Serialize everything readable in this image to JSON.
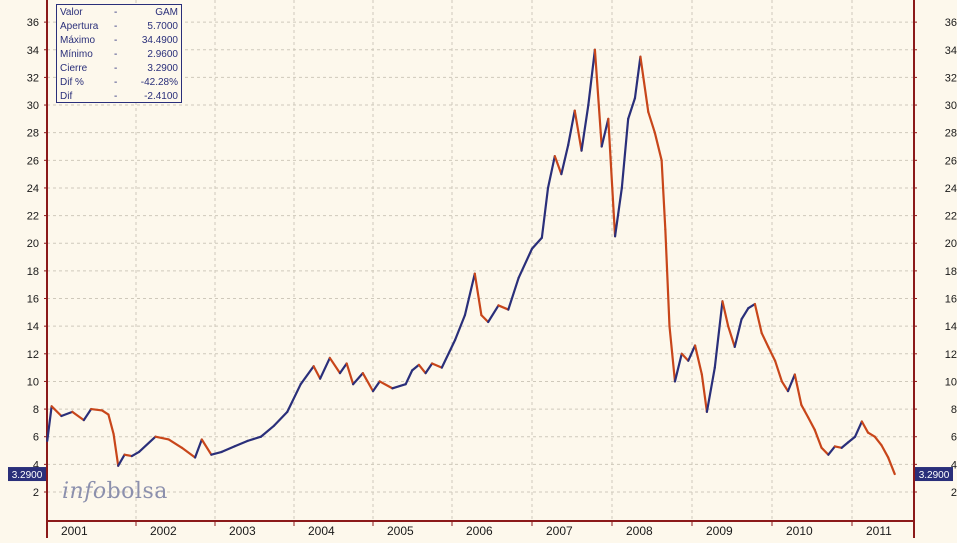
{
  "chart_data": {
    "type": "line",
    "title": "",
    "xlabel": "",
    "ylabel": "",
    "ylim": [
      1,
      37
    ],
    "y_ticks": [
      2,
      4,
      6,
      8,
      10,
      12,
      14,
      16,
      18,
      20,
      22,
      24,
      26,
      28,
      30,
      32,
      34,
      36
    ],
    "x_ticks": [
      "2001",
      "2002",
      "2003",
      "2004",
      "2005",
      "2006",
      "2007",
      "2008",
      "2009",
      "2010",
      "2011"
    ],
    "grid": true,
    "colors": {
      "series_up": "#2a2f7a",
      "series_down": "#c8461a",
      "axis": "#8b1a1a",
      "grid": "#cfc9bb",
      "label_box": "#2a2f7a"
    },
    "series": [
      {
        "values": [
          {
            "x": "2001-01-02",
            "y": 5.7
          },
          {
            "x": "2001-01-20",
            "y": 8.2
          },
          {
            "x": "2001-03-01",
            "y": 7.5
          },
          {
            "x": "2001-04-15",
            "y": 7.8
          },
          {
            "x": "2001-06-01",
            "y": 7.2
          },
          {
            "x": "2001-07-01",
            "y": 8.0
          },
          {
            "x": "2001-08-15",
            "y": 7.9
          },
          {
            "x": "2001-09-10",
            "y": 7.6
          },
          {
            "x": "2001-10-01",
            "y": 6.2
          },
          {
            "x": "2001-10-20",
            "y": 3.9
          },
          {
            "x": "2001-11-15",
            "y": 4.7
          },
          {
            "x": "2001-12-15",
            "y": 4.6
          },
          {
            "x": "2002-01-15",
            "y": 4.9
          },
          {
            "x": "2002-04-01",
            "y": 6.0
          },
          {
            "x": "2002-06-01",
            "y": 5.8
          },
          {
            "x": "2002-08-01",
            "y": 5.2
          },
          {
            "x": "2002-10-01",
            "y": 4.5
          },
          {
            "x": "2002-11-01",
            "y": 5.8
          },
          {
            "x": "2002-12-15",
            "y": 4.7
          },
          {
            "x": "2003-02-01",
            "y": 4.9
          },
          {
            "x": "2003-04-01",
            "y": 5.3
          },
          {
            "x": "2003-06-01",
            "y": 5.7
          },
          {
            "x": "2003-08-01",
            "y": 6.0
          },
          {
            "x": "2003-10-01",
            "y": 6.8
          },
          {
            "x": "2003-12-01",
            "y": 7.8
          },
          {
            "x": "2004-02-01",
            "y": 9.8
          },
          {
            "x": "2004-04-01",
            "y": 11.1
          },
          {
            "x": "2004-05-01",
            "y": 10.2
          },
          {
            "x": "2004-06-15",
            "y": 11.7
          },
          {
            "x": "2004-08-01",
            "y": 10.6
          },
          {
            "x": "2004-09-01",
            "y": 11.3
          },
          {
            "x": "2004-10-01",
            "y": 9.8
          },
          {
            "x": "2004-11-15",
            "y": 10.6
          },
          {
            "x": "2005-01-01",
            "y": 9.3
          },
          {
            "x": "2005-02-01",
            "y": 10.0
          },
          {
            "x": "2005-04-01",
            "y": 9.5
          },
          {
            "x": "2005-06-01",
            "y": 9.8
          },
          {
            "x": "2005-07-01",
            "y": 10.8
          },
          {
            "x": "2005-08-01",
            "y": 11.2
          },
          {
            "x": "2005-09-01",
            "y": 10.6
          },
          {
            "x": "2005-10-01",
            "y": 11.3
          },
          {
            "x": "2005-11-15",
            "y": 11.0
          },
          {
            "x": "2006-01-15",
            "y": 13.0
          },
          {
            "x": "2006-03-01",
            "y": 14.8
          },
          {
            "x": "2006-04-15",
            "y": 17.8
          },
          {
            "x": "2006-05-15",
            "y": 14.8
          },
          {
            "x": "2006-06-15",
            "y": 14.3
          },
          {
            "x": "2006-08-01",
            "y": 15.5
          },
          {
            "x": "2006-09-15",
            "y": 15.2
          },
          {
            "x": "2006-11-01",
            "y": 17.5
          },
          {
            "x": "2007-01-01",
            "y": 19.6
          },
          {
            "x": "2007-02-15",
            "y": 20.4
          },
          {
            "x": "2007-03-15",
            "y": 24.0
          },
          {
            "x": "2007-04-15",
            "y": 26.3
          },
          {
            "x": "2007-05-15",
            "y": 25.0
          },
          {
            "x": "2007-06-15",
            "y": 27.1
          },
          {
            "x": "2007-07-15",
            "y": 29.6
          },
          {
            "x": "2007-08-15",
            "y": 26.7
          },
          {
            "x": "2007-09-15",
            "y": 30.0
          },
          {
            "x": "2007-10-15",
            "y": 34.0
          },
          {
            "x": "2007-11-15",
            "y": 27.0
          },
          {
            "x": "2007-12-15",
            "y": 29.0
          },
          {
            "x": "2008-01-15",
            "y": 20.5
          },
          {
            "x": "2008-02-15",
            "y": 24.0
          },
          {
            "x": "2008-03-15",
            "y": 29.0
          },
          {
            "x": "2008-04-15",
            "y": 30.5
          },
          {
            "x": "2008-05-10",
            "y": 33.5
          },
          {
            "x": "2008-06-15",
            "y": 29.5
          },
          {
            "x": "2008-07-15",
            "y": 28.0
          },
          {
            "x": "2008-08-15",
            "y": 26.0
          },
          {
            "x": "2008-09-01",
            "y": 21.0
          },
          {
            "x": "2008-09-20",
            "y": 14.0
          },
          {
            "x": "2008-10-15",
            "y": 10.0
          },
          {
            "x": "2008-11-15",
            "y": 12.0
          },
          {
            "x": "2008-12-15",
            "y": 11.5
          },
          {
            "x": "2009-01-15",
            "y": 12.6
          },
          {
            "x": "2009-02-15",
            "y": 10.5
          },
          {
            "x": "2009-03-10",
            "y": 7.8
          },
          {
            "x": "2009-04-15",
            "y": 11.0
          },
          {
            "x": "2009-05-20",
            "y": 15.8
          },
          {
            "x": "2009-06-15",
            "y": 14.0
          },
          {
            "x": "2009-07-15",
            "y": 12.5
          },
          {
            "x": "2009-08-15",
            "y": 14.5
          },
          {
            "x": "2009-09-15",
            "y": 15.3
          },
          {
            "x": "2009-10-15",
            "y": 15.6
          },
          {
            "x": "2009-11-15",
            "y": 13.5
          },
          {
            "x": "2009-12-15",
            "y": 12.5
          },
          {
            "x": "2010-01-15",
            "y": 11.5
          },
          {
            "x": "2010-02-15",
            "y": 10.0
          },
          {
            "x": "2010-03-15",
            "y": 9.3
          },
          {
            "x": "2010-04-15",
            "y": 10.5
          },
          {
            "x": "2010-05-15",
            "y": 8.3
          },
          {
            "x": "2010-06-15",
            "y": 7.4
          },
          {
            "x": "2010-07-15",
            "y": 6.5
          },
          {
            "x": "2010-08-15",
            "y": 5.2
          },
          {
            "x": "2010-09-15",
            "y": 4.7
          },
          {
            "x": "2010-10-15",
            "y": 5.3
          },
          {
            "x": "2010-11-15",
            "y": 5.2
          },
          {
            "x": "2010-12-15",
            "y": 5.6
          },
          {
            "x": "2011-01-15",
            "y": 6.0
          },
          {
            "x": "2011-02-15",
            "y": 7.1
          },
          {
            "x": "2011-03-15",
            "y": 6.3
          },
          {
            "x": "2011-04-15",
            "y": 6.0
          },
          {
            "x": "2011-05-15",
            "y": 5.4
          },
          {
            "x": "2011-06-15",
            "y": 4.5
          },
          {
            "x": "2011-07-15",
            "y": 3.3
          }
        ]
      }
    ],
    "last_value_label": "3.2900"
  },
  "info": {
    "rows": [
      {
        "key": "Valor",
        "sep": "-",
        "val": "GAM"
      },
      {
        "key": "Apertura",
        "sep": "-",
        "val": "5.7000"
      },
      {
        "key": "Máximo",
        "sep": "-",
        "val": "34.4900"
      },
      {
        "key": "Mínimo",
        "sep": "-",
        "val": "2.9600"
      },
      {
        "key": "Cierre",
        "sep": "-",
        "val": "3.2900"
      },
      {
        "key": "Dif %",
        "sep": "-",
        "val": "-42.28%"
      },
      {
        "key": "Dif",
        "sep": "-",
        "val": "-2.4100"
      }
    ]
  },
  "logo": {
    "part1": "info",
    "part2": "bolsa"
  }
}
